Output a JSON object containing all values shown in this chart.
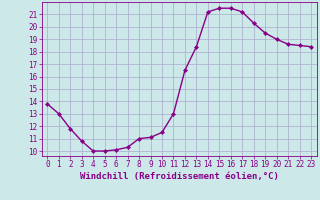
{
  "x": [
    0,
    1,
    2,
    3,
    4,
    5,
    6,
    7,
    8,
    9,
    10,
    11,
    12,
    13,
    14,
    15,
    16,
    17,
    18,
    19,
    20,
    21,
    22,
    23
  ],
  "y": [
    13.8,
    13.0,
    11.8,
    10.8,
    10.0,
    10.0,
    10.1,
    10.3,
    11.0,
    11.1,
    11.5,
    13.0,
    16.5,
    18.4,
    21.2,
    21.5,
    21.5,
    21.2,
    20.3,
    19.5,
    19.0,
    18.6,
    18.5,
    18.4
  ],
  "line_color": "#880088",
  "marker": "D",
  "marker_size": 2.0,
  "line_width": 1.0,
  "bg_color": "#cce8e8",
  "grid_color": "#aaaacc",
  "xlabel": "Windchill (Refroidissement éolien,°C)",
  "xlabel_color": "#880088",
  "xlabel_fontsize": 6.5,
  "ytick_labels": [
    "10",
    "11",
    "12",
    "13",
    "14",
    "15",
    "16",
    "17",
    "18",
    "19",
    "20",
    "21"
  ],
  "ytick_vals": [
    10,
    11,
    12,
    13,
    14,
    15,
    16,
    17,
    18,
    19,
    20,
    21
  ],
  "ylim": [
    9.6,
    22.0
  ],
  "xlim": [
    -0.5,
    23.5
  ],
  "tick_color": "#880088",
  "tick_fontsize": 5.5,
  "spine_color": "#880088"
}
